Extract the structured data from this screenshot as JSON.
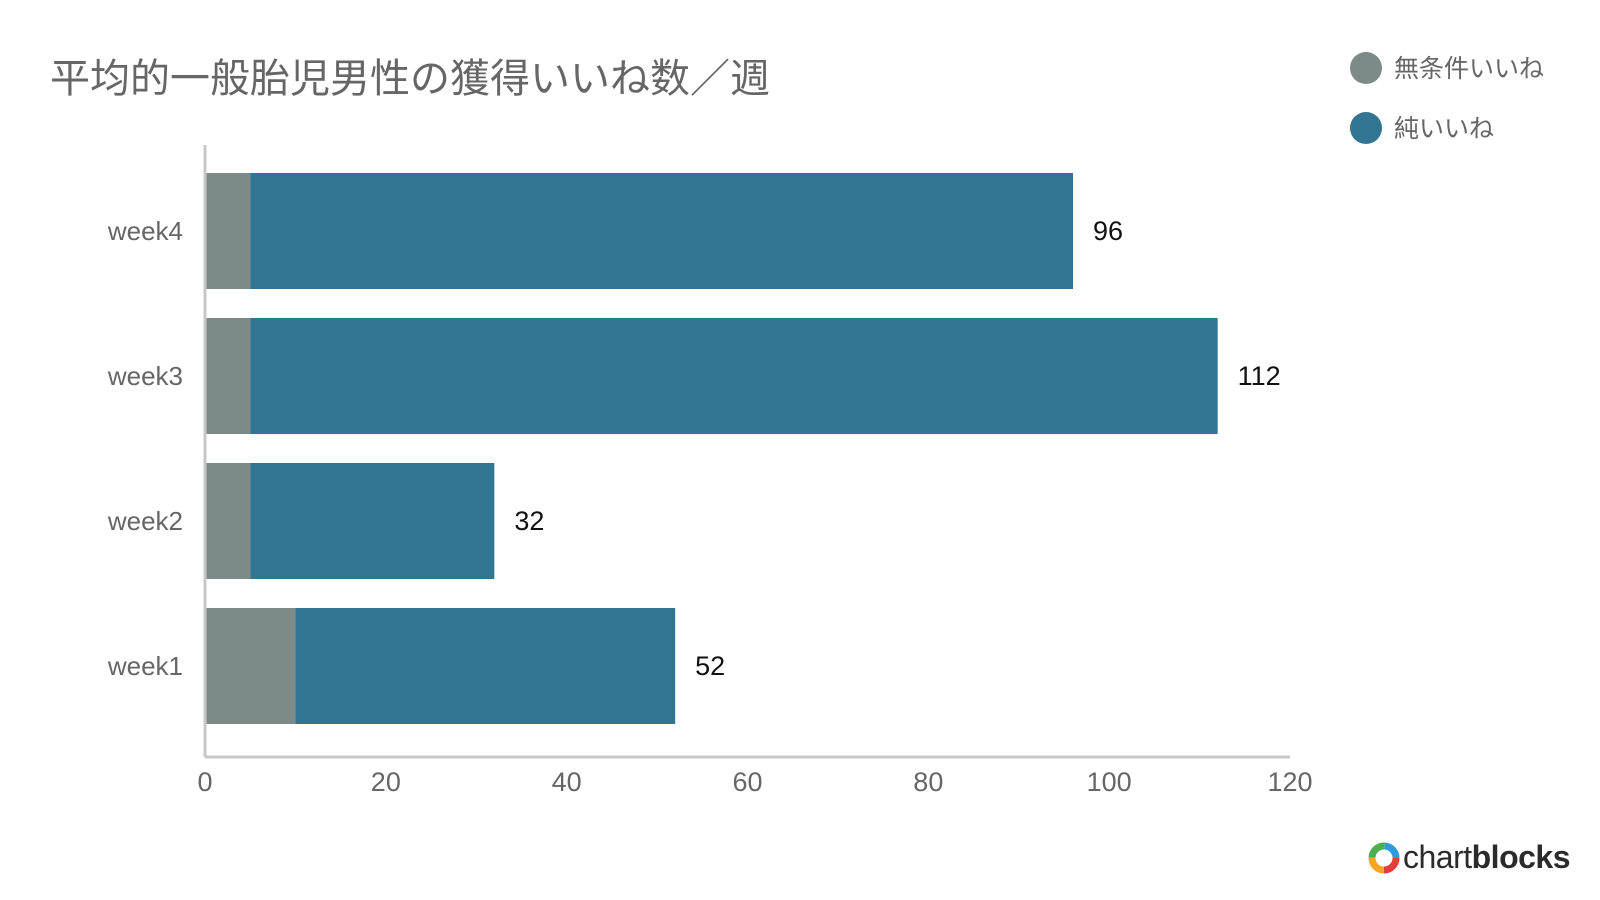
{
  "chart_data": {
    "type": "bar",
    "orientation": "horizontal",
    "stacked": true,
    "title": "平均的一般胎児男性の獲得いいね数／週",
    "categories": [
      "week4",
      "week3",
      "week2",
      "week1"
    ],
    "series": [
      {
        "name": "無条件いいね",
        "values": [
          5,
          5,
          5,
          10
        ],
        "color": "#7c8a88"
      },
      {
        "name": "純いいね",
        "values": [
          91,
          107,
          27,
          42
        ],
        "color": "#317592"
      }
    ],
    "totals": [
      "96",
      "112",
      "32",
      "52"
    ],
    "xlim": [
      0,
      120
    ],
    "xticks": [
      "0",
      "20",
      "40",
      "60",
      "80",
      "100",
      "120"
    ],
    "xlabel": "",
    "ylabel": "",
    "grid": false,
    "legend": "top-right"
  },
  "brand": {
    "prefix": "chart",
    "suffix": "blocks",
    "logo_icon": "chartblocks-ring-icon",
    "logo_colors": [
      "#e63c3c",
      "#f5a623",
      "#4caf50",
      "#2d9cdb"
    ]
  },
  "colors": {
    "axis": "#c8c8c8",
    "text": "#666666",
    "label": "#111111"
  }
}
